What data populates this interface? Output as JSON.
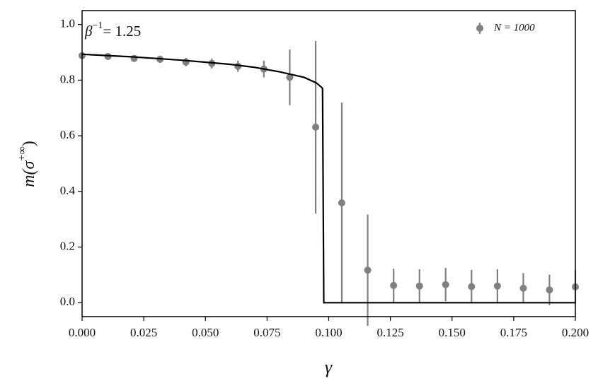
{
  "chart_data": {
    "type": "scatter",
    "xlabel": "γ",
    "ylabel": [
      "m(σ",
      "+∞",
      ")"
    ],
    "annotation": [
      "β",
      "−1",
      "= 1.25"
    ],
    "xlim": [
      0,
      0.2
    ],
    "ylim": [
      -0.05,
      1.05
    ],
    "xticks": [
      {
        "value": 0,
        "label": "0.000"
      },
      {
        "value": 0.025,
        "label": "0.025"
      },
      {
        "value": 0.05,
        "label": "0.050"
      },
      {
        "value": 0.075,
        "label": "0.075"
      },
      {
        "value": 0.1,
        "label": "0.100"
      },
      {
        "value": 0.125,
        "label": "0.125"
      },
      {
        "value": 0.15,
        "label": "0.150"
      },
      {
        "value": 0.175,
        "label": "0.175"
      },
      {
        "value": 0.2,
        "label": "0.200"
      }
    ],
    "yticks": [
      {
        "value": 0,
        "label": "0.0"
      },
      {
        "value": 0.2,
        "label": "0.2"
      },
      {
        "value": 0.4,
        "label": "0.4"
      },
      {
        "value": 0.6,
        "label": "0.6"
      },
      {
        "value": 0.8,
        "label": "0.8"
      },
      {
        "value": 1,
        "label": "1.0"
      }
    ],
    "legend": "upper right",
    "series": [
      {
        "name": "N = 1000",
        "type": "errorbar",
        "color": "#808080",
        "x": [
          0,
          0.0105,
          0.0211,
          0.0316,
          0.0421,
          0.0526,
          0.0632,
          0.0737,
          0.0842,
          0.0947,
          0.1053,
          0.1158,
          0.1263,
          0.1368,
          0.1474,
          0.1579,
          0.1684,
          0.1789,
          0.1895,
          0.2
        ],
        "values": [
          0.888,
          0.885,
          0.878,
          0.875,
          0.865,
          0.86,
          0.85,
          0.84,
          0.81,
          0.631,
          0.359,
          0.117,
          0.062,
          0.06,
          0.065,
          0.058,
          0.06,
          0.052,
          0.046,
          0.057
        ],
        "errors": [
          0.01,
          0.01,
          0.012,
          0.013,
          0.015,
          0.018,
          0.02,
          0.03,
          0.1,
          0.31,
          0.36,
          0.2,
          0.06,
          0.06,
          0.06,
          0.06,
          0.06,
          0.055,
          0.055,
          0.06
        ]
      },
      {
        "type": "line",
        "color": "#000000",
        "x": [
          0,
          0.02,
          0.04,
          0.06,
          0.07,
          0.08,
          0.09,
          0.095,
          0.097,
          0.0975,
          0.098,
          0.2
        ],
        "values": [
          0.893,
          0.884,
          0.872,
          0.857,
          0.846,
          0.83,
          0.81,
          0.79,
          0.775,
          0.77,
          0,
          0
        ]
      }
    ]
  }
}
